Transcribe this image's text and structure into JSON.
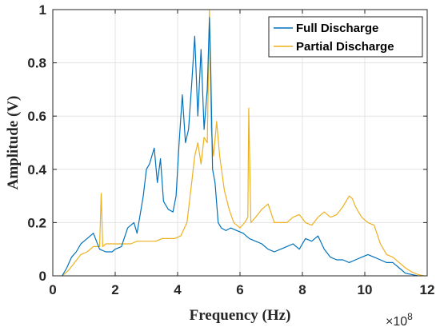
{
  "chart_data": {
    "type": "line",
    "title": "",
    "xlabel": "Frequency (Hz)",
    "ylabel": "Amplitude (V)",
    "x_exponent_base": "×10",
    "x_exponent_power": "8",
    "xlim": [
      0,
      12
    ],
    "ylim": [
      0,
      1
    ],
    "x_ticks": [
      "0",
      "2",
      "4",
      "6",
      "8",
      "10",
      "12"
    ],
    "y_ticks": [
      "0",
      "0.2",
      "0.4",
      "0.6",
      "0.8",
      "1"
    ],
    "grid": true,
    "legend_position": "top-right",
    "colors": {
      "full": "#0072BD",
      "partial": "#EDB120"
    },
    "series": [
      {
        "name": "Full Discharge",
        "x": [
          0.3,
          0.45,
          0.6,
          0.75,
          0.9,
          1.0,
          1.2,
          1.3,
          1.5,
          1.7,
          1.9,
          2.0,
          2.2,
          2.4,
          2.6,
          2.7,
          2.9,
          3.0,
          3.1,
          3.25,
          3.35,
          3.45,
          3.55,
          3.7,
          3.85,
          3.95,
          4.05,
          4.15,
          4.25,
          4.35,
          4.45,
          4.55,
          4.65,
          4.75,
          4.85,
          4.95,
          5.02,
          5.06,
          5.12,
          5.2,
          5.3,
          5.4,
          5.55,
          5.7,
          5.9,
          6.1,
          6.3,
          6.5,
          6.7,
          6.9,
          7.1,
          7.3,
          7.5,
          7.7,
          7.9,
          8.1,
          8.3,
          8.5,
          8.7,
          8.9,
          9.1,
          9.3,
          9.5,
          9.7,
          9.9,
          10.1,
          10.3,
          10.5,
          10.7,
          10.9,
          11.1,
          11.3,
          11.5,
          11.7
        ],
        "y": [
          0.0,
          0.03,
          0.07,
          0.09,
          0.12,
          0.13,
          0.15,
          0.16,
          0.1,
          0.09,
          0.09,
          0.1,
          0.11,
          0.18,
          0.2,
          0.16,
          0.3,
          0.4,
          0.42,
          0.48,
          0.35,
          0.44,
          0.28,
          0.25,
          0.24,
          0.3,
          0.5,
          0.68,
          0.5,
          0.55,
          0.72,
          0.9,
          0.6,
          0.85,
          0.55,
          0.7,
          0.97,
          0.8,
          0.4,
          0.35,
          0.2,
          0.18,
          0.17,
          0.18,
          0.17,
          0.16,
          0.14,
          0.13,
          0.12,
          0.1,
          0.09,
          0.1,
          0.11,
          0.12,
          0.1,
          0.14,
          0.13,
          0.15,
          0.1,
          0.07,
          0.06,
          0.06,
          0.05,
          0.06,
          0.07,
          0.08,
          0.07,
          0.06,
          0.05,
          0.05,
          0.03,
          0.01,
          0.005,
          0.0
        ]
      },
      {
        "name": "Partial Discharge",
        "x": [
          0.3,
          0.5,
          0.7,
          0.9,
          1.1,
          1.3,
          1.5,
          1.55,
          1.6,
          1.7,
          1.9,
          2.1,
          2.3,
          2.5,
          2.7,
          2.9,
          3.1,
          3.3,
          3.5,
          3.7,
          3.9,
          4.1,
          4.3,
          4.45,
          4.55,
          4.65,
          4.75,
          4.85,
          4.95,
          5.02,
          5.08,
          5.15,
          5.25,
          5.35,
          5.5,
          5.65,
          5.8,
          6.0,
          6.15,
          6.25,
          6.28,
          6.35,
          6.5,
          6.7,
          6.9,
          7.1,
          7.3,
          7.5,
          7.7,
          7.9,
          8.1,
          8.3,
          8.5,
          8.7,
          8.9,
          9.1,
          9.3,
          9.5,
          9.6,
          9.7,
          9.9,
          10.1,
          10.3,
          10.5,
          10.7,
          10.9,
          11.1,
          11.3,
          11.5,
          11.7,
          11.9
        ],
        "y": [
          0.0,
          0.02,
          0.05,
          0.08,
          0.09,
          0.11,
          0.11,
          0.31,
          0.11,
          0.12,
          0.12,
          0.12,
          0.12,
          0.12,
          0.13,
          0.13,
          0.13,
          0.13,
          0.14,
          0.14,
          0.14,
          0.15,
          0.2,
          0.35,
          0.45,
          0.5,
          0.42,
          0.52,
          0.5,
          1.0,
          0.55,
          0.45,
          0.58,
          0.45,
          0.32,
          0.25,
          0.2,
          0.18,
          0.2,
          0.22,
          0.63,
          0.2,
          0.22,
          0.25,
          0.27,
          0.2,
          0.2,
          0.2,
          0.22,
          0.23,
          0.2,
          0.19,
          0.22,
          0.24,
          0.22,
          0.23,
          0.26,
          0.3,
          0.29,
          0.26,
          0.22,
          0.2,
          0.19,
          0.12,
          0.08,
          0.07,
          0.05,
          0.03,
          0.015,
          0.005,
          0.0
        ]
      }
    ]
  }
}
